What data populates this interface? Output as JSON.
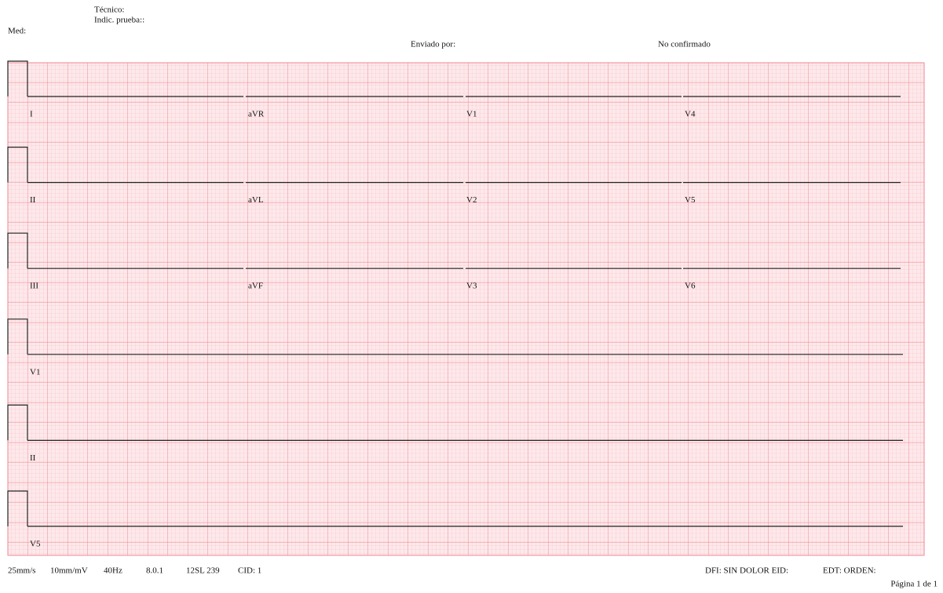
{
  "header": {
    "tecnico": "Técnico:",
    "indic": "Indic. prueba::",
    "med": "Med:",
    "enviado": "Enviado por:",
    "estado": "No confirmado"
  },
  "leads": [
    [
      "I",
      "aVR",
      "V1",
      "V4"
    ],
    [
      "II",
      "aVL",
      "V2",
      "V5"
    ],
    [
      "III",
      "aVF",
      "V3",
      "V6"
    ]
  ],
  "rhythm": [
    "V1",
    "II",
    "V5"
  ],
  "footer": {
    "settings": [
      "25mm/s",
      "10mm/mV",
      "40Hz",
      "8.0.1",
      "12SL 239",
      "CID: 1"
    ],
    "dfi": "DFI: SIN DOLOR EID:",
    "edt": "EDT: ORDEN:",
    "page": "Página 1 de 1"
  }
}
